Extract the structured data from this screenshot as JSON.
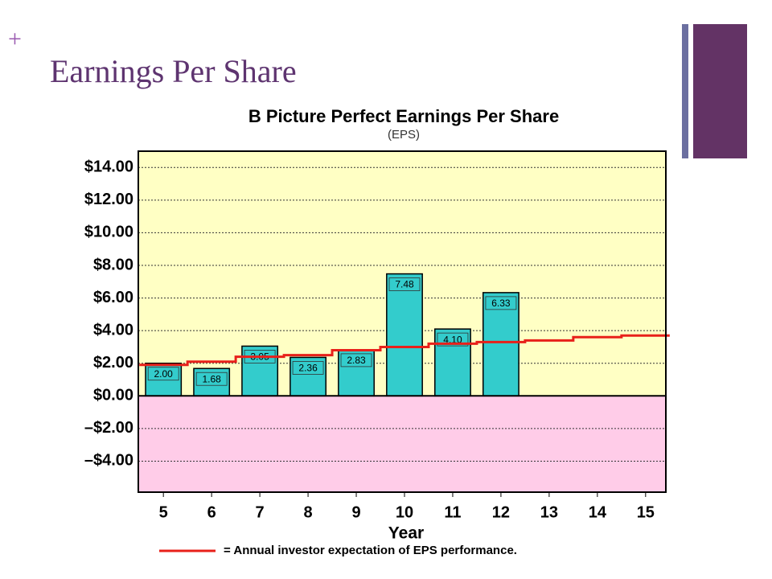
{
  "bullet": "+",
  "title": "Earnings Per Share",
  "chart_data": {
    "type": "bar",
    "title": "B Picture Perfect Earnings Per Share",
    "subtitle": "(EPS)",
    "x_label": "Year",
    "x": [
      5,
      6,
      7,
      8,
      9,
      10,
      11,
      12,
      13,
      14,
      15
    ],
    "values": [
      2.0,
      1.68,
      3.05,
      2.36,
      2.83,
      7.48,
      4.1,
      6.33,
      null,
      null,
      null
    ],
    "value_labels": [
      "2.00",
      "1.68",
      "3.05",
      "2.36",
      "2.83",
      "7.48",
      "4.10",
      "6.33",
      null,
      null,
      null
    ],
    "color": "#33cccc",
    "series": [
      {
        "name": "= Annual investor expectation of EPS performance.",
        "color": "#e8201a",
        "values": [
          1.9,
          2.1,
          2.4,
          2.5,
          2.8,
          3.0,
          3.2,
          3.3,
          3.4,
          3.6,
          3.7
        ]
      }
    ],
    "xlim": [
      4.48,
      15.42
    ],
    "xticks": [
      5,
      6,
      7,
      8,
      9,
      10,
      11,
      12,
      13,
      14,
      15
    ],
    "ylim": [
      -5.9,
      15
    ],
    "yticks": [
      {
        "value": -4,
        "label": "–$4.00"
      },
      {
        "value": -2,
        "label": "–$2.00"
      },
      {
        "value": 0,
        "label": "$0.00"
      },
      {
        "value": 2,
        "label": "$2.00"
      },
      {
        "value": 4,
        "label": "$4.00"
      },
      {
        "value": 6,
        "label": "$6.00"
      },
      {
        "value": 8,
        "label": "$8.00"
      },
      {
        "value": 10,
        "label": "$10.00"
      },
      {
        "value": 12,
        "label": "$12.00"
      },
      {
        "value": 14,
        "label": "$14.00"
      }
    ],
    "grid": true
  }
}
